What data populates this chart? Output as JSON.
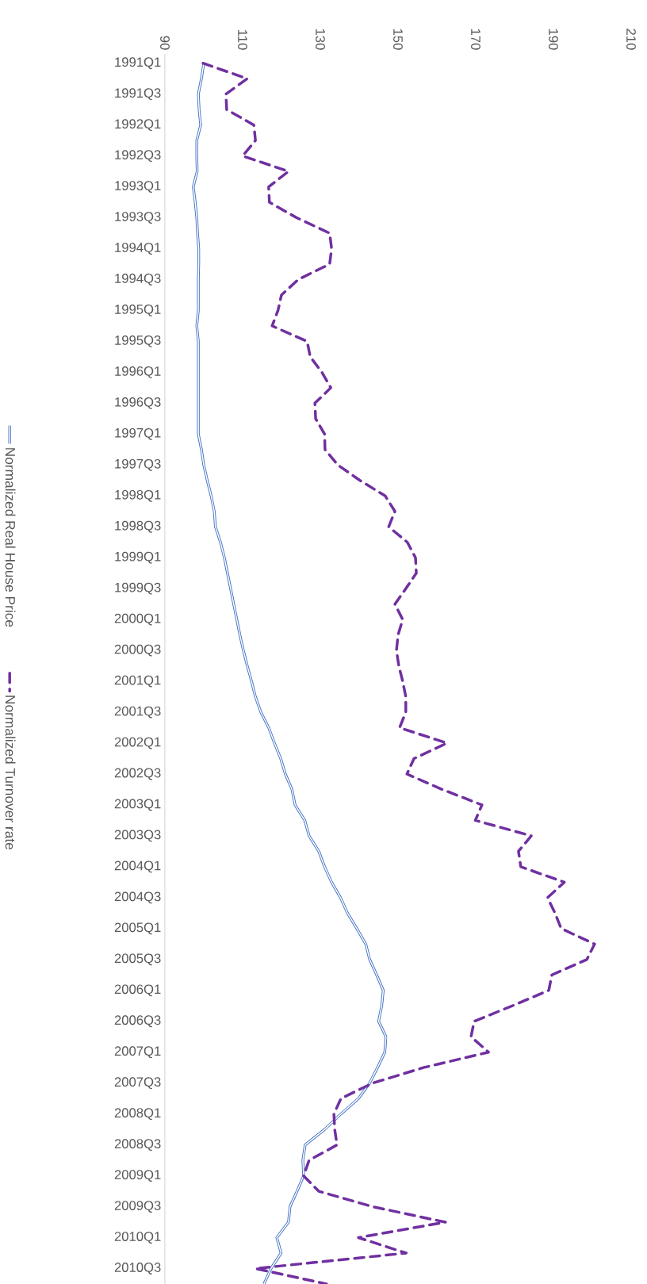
{
  "chart_data": {
    "type": "line",
    "orientation": "horizontal",
    "categories": [
      "1991Q1",
      null,
      "1991Q3",
      null,
      "1992Q1",
      null,
      "1992Q3",
      null,
      "1993Q1",
      null,
      "1993Q3",
      null,
      "1994Q1",
      null,
      "1994Q3",
      null,
      "1995Q1",
      null,
      "1995Q3",
      null,
      "1996Q1",
      null,
      "1996Q3",
      null,
      "1997Q1",
      null,
      "1997Q3",
      null,
      "1998Q1",
      null,
      "1998Q3",
      null,
      "1999Q1",
      null,
      "1999Q3",
      null,
      "2000Q1",
      null,
      "2000Q3",
      null,
      "2001Q1",
      null,
      "2001Q3",
      null,
      "2002Q1",
      null,
      "2002Q3",
      null,
      "2003Q1",
      null,
      "2003Q3",
      null,
      "2004Q1",
      null,
      "2004Q3",
      null,
      "2005Q1",
      null,
      "2005Q3",
      null,
      "2006Q1",
      null,
      "2006Q3",
      null,
      "2007Q1",
      null,
      "2007Q3",
      null,
      "2008Q1",
      null,
      "2008Q3",
      null,
      "2009Q1",
      null,
      "2009Q3",
      null,
      "2010Q1",
      null,
      "2010Q3",
      null
    ],
    "series": [
      {
        "name": "Normalized Real House Price",
        "color": "#4472c4",
        "line_style": "solid",
        "values": [
          100,
          99.4,
          98.6,
          98.8,
          99.2,
          98.2,
          98.2,
          98.3,
          97.3,
          97.8,
          98.2,
          98.4,
          98.7,
          98.7,
          98.6,
          98.6,
          98.6,
          98.2,
          98.6,
          98.6,
          98.6,
          98.6,
          98.6,
          98.6,
          98.6,
          99.4,
          100,
          100.9,
          101.9,
          102.7,
          103,
          104.3,
          105.3,
          106.1,
          106.9,
          107.7,
          108.5,
          109.3,
          110.2,
          111.2,
          112.3,
          113.3,
          114.7,
          116.7,
          118.2,
          119.8,
          121,
          122.7,
          123.5,
          126,
          127.1,
          129.6,
          131.1,
          132.9,
          135.2,
          137,
          139.4,
          141.7,
          142.7,
          144.5,
          146.2,
          145.8,
          145,
          146.9,
          146.6,
          144.7,
          142.7,
          139.8,
          135.3,
          131.1,
          126.1,
          125.5,
          125.7,
          124,
          122.2,
          121.8,
          118.8,
          119.9,
          117.3,
          115.5
        ]
      },
      {
        "name": "Normalized Turnover rate",
        "color": "#7030a0",
        "line_style": "dashed",
        "values": [
          99.8,
          111.2,
          105.7,
          105.9,
          112.9,
          113.3,
          110,
          121.8,
          116.7,
          116.9,
          123.9,
          132.4,
          132.9,
          132.4,
          124.3,
          120,
          119.1,
          117.6,
          126.6,
          127.4,
          130.4,
          132.7,
          128.6,
          128.8,
          131.1,
          131.2,
          134.5,
          140.2,
          146.7,
          149.2,
          147.6,
          152.4,
          154.5,
          154.7,
          152,
          149.2,
          151.2,
          150,
          149.6,
          150.2,
          151.2,
          152,
          152,
          150.4,
          162.6,
          154.1,
          152.3,
          161.4,
          171.6,
          169.9,
          184.3,
          181,
          181.6,
          192.8,
          188.5,
          190.4,
          192,
          200.6,
          198.6,
          189.6,
          188.8,
          179.4,
          169.6,
          168.8,
          173.3,
          156.5,
          143.5,
          135.3,
          133.5,
          133.7,
          134.3,
          127.1,
          125.7,
          129.6,
          143.5,
          162.2,
          139.8,
          152.1,
          113.3,
          131.6
        ]
      }
    ],
    "xlim": [
      90,
      210
    ],
    "xticks": [
      90,
      110,
      130,
      150,
      170,
      190,
      210
    ],
    "legend": "left",
    "marker": "none"
  }
}
